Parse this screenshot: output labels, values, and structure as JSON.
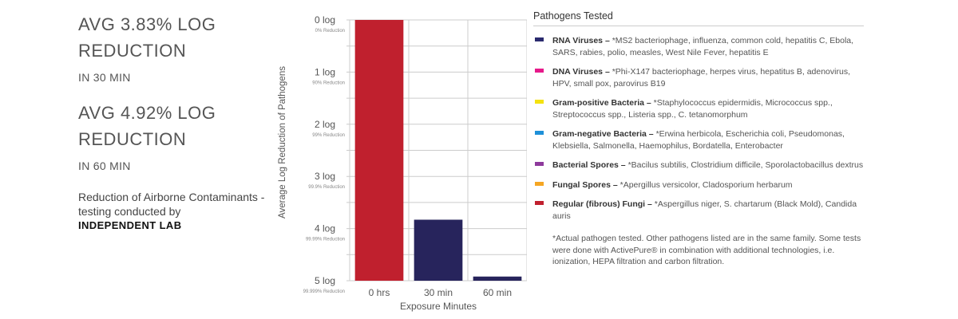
{
  "stats": [
    {
      "title": "AVG 3.83% LOG REDUCTION",
      "subtitle": "IN 30 MIN"
    },
    {
      "title": "AVG 4.92% LOG REDUCTION",
      "subtitle": "IN 60 MIN"
    }
  ],
  "note": {
    "text": "Reduction of Airborne Contaminants - testing conducted by",
    "highlight": "INDEPENDENT LAB"
  },
  "colors": {
    "bar_hours": "#c0202e",
    "bar_minutes": "#27245c",
    "grid": "#cccccc"
  },
  "chart_data": {
    "type": "bar",
    "categories": [
      "0 hrs",
      "30 min",
      "60 min"
    ],
    "values": [
      0,
      3.83,
      4.92
    ],
    "bar_colors": [
      "#c0202e",
      "#27245c",
      "#27245c"
    ],
    "xlabel": "Exposure Minutes",
    "ylabel": "Average Log Reduction of Pathogens",
    "ylim": [
      0,
      5
    ],
    "y_inverted": true,
    "y_ticks": [
      {
        "value": 0,
        "label": "0 log",
        "sublabel": "0% Reduction"
      },
      {
        "value": 1,
        "label": "1 log",
        "sublabel": "90% Reduction"
      },
      {
        "value": 2,
        "label": "2 log",
        "sublabel": "99% Reduction"
      },
      {
        "value": 3,
        "label": "3 log",
        "sublabel": "99.9% Reduction"
      },
      {
        "value": 4,
        "label": "4 log",
        "sublabel": "99.99% Reduction"
      },
      {
        "value": 5,
        "label": "5 log",
        "sublabel": "99.999% Reduction"
      }
    ],
    "grid": true
  },
  "legend": {
    "title": "Pathogens Tested",
    "items": [
      {
        "color": "#2a2a6e",
        "name": "RNA Viruses",
        "desc": "*MS2 bacteriophage, influenza, common cold, hepatitis C, Ebola, SARS, rabies, polio, measles, West Nile Fever, hepatitis E"
      },
      {
        "color": "#e6198a",
        "name": "DNA Viruses",
        "desc": "*Phi-X147 bacteriophage, herpes virus, hepatitus B, adenovirus, HPV, small pox, parovirus B19"
      },
      {
        "color": "#f4e20f",
        "name": "Gram-positive Bacteria",
        "desc": "*Staphylococcus epidermidis, Micrococcus spp., Streptococcus spp., Listeria spp., C. tetanomorphum"
      },
      {
        "color": "#1e90d8",
        "name": "Gram-negative Bacteria",
        "desc": "*Erwina herbicola, Escherichia coli, Pseudomonas, Klebsiella, Salmonella, Haemophilus, Bordatella, Enterobacter"
      },
      {
        "color": "#8e3a9c",
        "name": "Bacterial Spores",
        "desc": "*Bacilus subtilis, Clostridium difficile, Sporolactobacillus dextrus"
      },
      {
        "color": "#f5a623",
        "name": "Fungal Spores",
        "desc": "*Apergillus versicolor, Cladosporium herbarum"
      },
      {
        "color": "#c0202e",
        "name": "Regular (fibrous) Fungi",
        "desc": "*Aspergillus niger, S. chartarum (Black Mold), Candida auris"
      }
    ],
    "separator": " – ",
    "footnote": "*Actual pathogen tested. Other pathogens listed are in the same family. Some tests were done with ActivePure® in combination with additional technologies, i.e. ionization, HEPA filtration and carbon filtration."
  }
}
